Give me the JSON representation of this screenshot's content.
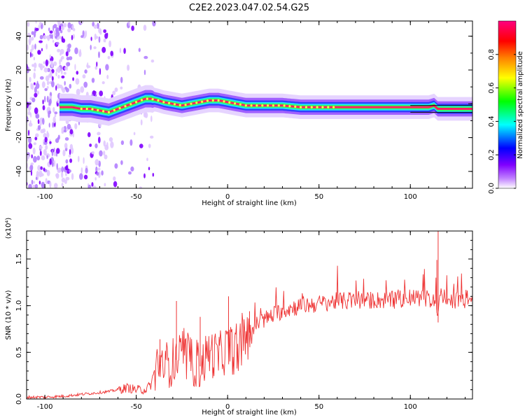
{
  "figure": {
    "title": "C2E2.2023.047.02.54.G25"
  },
  "chart_data": [
    {
      "type": "heatmap",
      "xlabel": "Height of straight line (km)",
      "ylabel": "Frequency (Hz)",
      "xlim": [
        -110,
        134
      ],
      "ylim": [
        -50,
        49
      ],
      "xticks": [
        "-100",
        "-50",
        "0",
        "50",
        "100"
      ],
      "xtick_values": [
        -100,
        -50,
        0,
        50,
        100
      ],
      "yticks": [
        "-40",
        "-20",
        "0",
        "20",
        "40"
      ],
      "ytick_values": [
        -40,
        -20,
        0,
        20,
        40
      ],
      "colorbar": {
        "label": "Normalized spectral amplitude",
        "range": [
          0,
          1
        ],
        "ticks": [
          "0.0",
          "0.2",
          "0.4",
          "0.6",
          "0.8"
        ],
        "tick_values": [
          0.0,
          0.2,
          0.4,
          0.6,
          0.8
        ],
        "colormap": [
          "#ffffff",
          "#8000ff",
          "#0000ff",
          "#00ffff",
          "#00ff00",
          "#ffff00",
          "#ff8000",
          "#ff0000",
          "#ff0080"
        ]
      },
      "ridge": {
        "x": [
          -95,
          -85,
          -80,
          -75,
          -70,
          -65,
          -60,
          -55,
          -50,
          -45,
          -42,
          -38,
          -35,
          -30,
          -25,
          -20,
          -15,
          -10,
          -5,
          0,
          5,
          10,
          20,
          30,
          40,
          50,
          60,
          70,
          80,
          90,
          100,
          110,
          113,
          115,
          120,
          134
        ],
        "y": [
          -2,
          -2,
          -3,
          -3,
          -4,
          -5,
          -3,
          -1,
          1,
          3,
          3,
          2,
          1,
          0,
          -1,
          0,
          1,
          2,
          2,
          1,
          0,
          -1,
          -1,
          -1,
          -2,
          -2,
          -2,
          -2,
          -2,
          -2,
          -2,
          -2,
          -1,
          -3,
          -3,
          -3
        ]
      }
    },
    {
      "type": "line",
      "xlabel": "Height of straight line (km)",
      "ylabel": "SNR (10 * v/v)",
      "multiplier": "(x10⁴)",
      "xlim": [
        -110,
        134
      ],
      "ylim": [
        0,
        1.8
      ],
      "xticks": [
        "-100",
        "-50",
        "0",
        "50",
        "100"
      ],
      "xtick_values": [
        -100,
        -50,
        0,
        50,
        100
      ],
      "yticks": [
        "0.0",
        "0.5",
        "1.0",
        "1.5"
      ],
      "ytick_values": [
        0.0,
        0.5,
        1.0,
        1.5
      ],
      "color": "#ee3333",
      "series": [
        {
          "x": [
            -110,
            -100,
            -90,
            -80,
            -75,
            -70,
            -65,
            -60,
            -55,
            -50,
            -45,
            -42,
            -40,
            -38,
            -35,
            -30,
            -25,
            -20,
            -15,
            -10,
            -5,
            0,
            5,
            10,
            15,
            20,
            25,
            30,
            40,
            50,
            60,
            70,
            80,
            90,
            100,
            105,
            110,
            112,
            114,
            115,
            116,
            118,
            120,
            125,
            130,
            134
          ],
          "values": [
            0.02,
            0.02,
            0.03,
            0.05,
            0.06,
            0.07,
            0.08,
            0.1,
            0.12,
            0.1,
            0.1,
            0.15,
            0.3,
            0.4,
            0.35,
            0.4,
            0.45,
            0.4,
            0.35,
            0.5,
            0.45,
            0.55,
            0.5,
            0.65,
            0.8,
            0.85,
            0.9,
            0.95,
            1.0,
            1.02,
            1.05,
            1.05,
            1.06,
            1.06,
            1.08,
            1.08,
            1.08,
            1.05,
            1.1,
            0.75,
            1.1,
            1.08,
            1.07,
            1.06,
            1.05,
            1.04
          ]
        }
      ]
    }
  ]
}
